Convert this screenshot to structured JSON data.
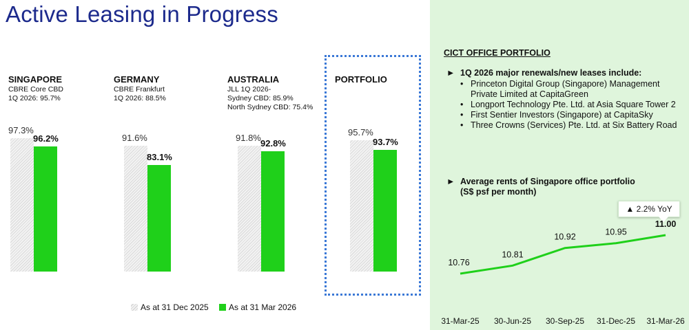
{
  "title": "Active Leasing in Progress",
  "regions": [
    {
      "name": "SINGAPORE",
      "sub": "CBRE Core CBD\n1Q 2026: 95.7%",
      "prev": 97.3,
      "curr": 96.2,
      "prev_label": "97.3%",
      "curr_label": "96.2%"
    },
    {
      "name": "GERMANY",
      "sub": "CBRE Frankfurt\n1Q 2026: 88.5%",
      "prev": 91.6,
      "curr": 83.1,
      "prev_label": "91.6%",
      "curr_label": "83.1%"
    },
    {
      "name": "AUSTRALIA",
      "sub": "JLL 1Q 2026-\nSydney CBD: 85.9%\nNorth Sydney CBD: 75.4%",
      "prev": 91.8,
      "curr": 92.8,
      "prev_label": "91.8%",
      "curr_label": "92.8%"
    },
    {
      "name": "PORTFOLIO",
      "sub": "",
      "prev": 95.7,
      "curr": 93.7,
      "prev_label": "95.7%",
      "curr_label": "93.7%"
    }
  ],
  "legend": {
    "prev": "As at 31 Dec 2025",
    "curr": "As at 31 Mar 2026"
  },
  "colors": {
    "accent_green": "#1fd01a",
    "title_blue": "#1c2a8c",
    "panel_bg": "#dff5dc",
    "highlight_border": "#3a78d6"
  },
  "right_panel": {
    "heading": "CICT OFFICE PORTFOLIO",
    "bullet1": "1Q 2026 major renewals/new leases include:",
    "leases": [
      "Princeton Digital Group (Singapore) Management Private Limited at CapitaGreen",
      "Longport Technology Pte. Ltd. at Asia Square Tower 2",
      "First Sentier Investors (Singapore) at CapitaSky",
      "Three Crowns (Services) Pte. Ltd. at Six Battery Road"
    ],
    "bullet2_line1": "Average rents of Singapore office portfolio",
    "bullet2_line2": "(S$ psf per month)",
    "arrow_icon": "►",
    "yoy_label": "▲ 2.2% YoY"
  },
  "chart_data": [
    {
      "type": "bar",
      "categories": [
        "SINGAPORE",
        "GERMANY",
        "AUSTRALIA",
        "PORTFOLIO"
      ],
      "series": [
        {
          "name": "As at 31 Dec 2025",
          "values": [
            97.3,
            91.6,
            91.8,
            95.7
          ]
        },
        {
          "name": "As at 31 Mar 2026",
          "values": [
            96.2,
            83.1,
            92.8,
            93.7
          ]
        }
      ],
      "title": "Active Leasing in Progress",
      "legend": "bottom"
    },
    {
      "type": "line",
      "title": "Average rents of Singapore office portfolio",
      "subtitle": "(S$ psf per month)",
      "x": [
        "31-Mar-25",
        "30-Jun-25",
        "30-Sep-25",
        "31-Dec-25",
        "31-Mar-26"
      ],
      "values": [
        10.76,
        10.81,
        10.92,
        10.95,
        11.0
      ],
      "labels": [
        "10.76",
        "10.81",
        "10.92",
        "10.95",
        "11.00"
      ],
      "annotation": "▲ 2.2% YoY"
    }
  ]
}
